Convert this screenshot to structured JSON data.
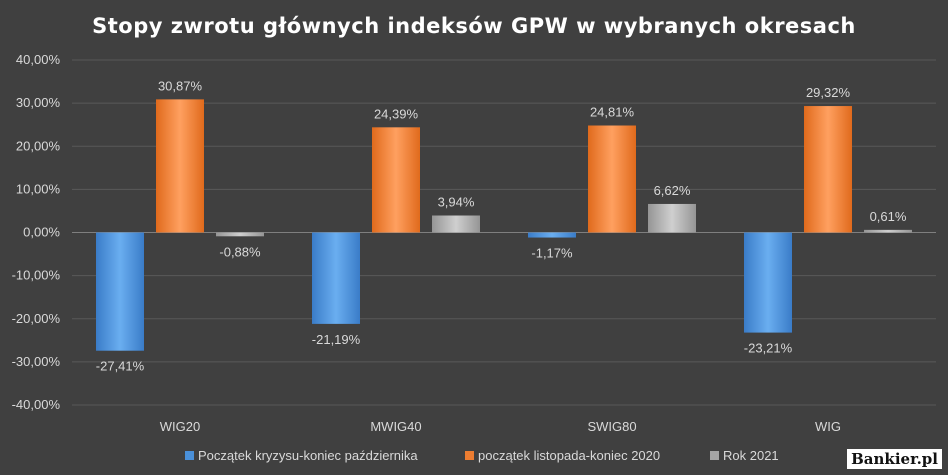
{
  "chart_data": {
    "type": "bar",
    "title": "Stopy zwrotu głównych indeksów GPW w wybranych okresach",
    "categories": [
      "WIG20",
      "MWIG40",
      "SWIG80",
      "WIG"
    ],
    "series": [
      {
        "name": "Początek kryzysu-koniec października",
        "color": "#4a90d9",
        "values": [
          -27.41,
          -21.19,
          -1.17,
          -23.21
        ],
        "labels": [
          "-27,41%",
          "-21,19%",
          "-1,17%",
          "-23,21%"
        ]
      },
      {
        "name": "początek listopada-koniec 2020",
        "color": "#ed7d31",
        "values": [
          30.87,
          24.39,
          24.81,
          29.32
        ],
        "labels": [
          "30,87%",
          "24,39%",
          "24,81%",
          "29,32%"
        ]
      },
      {
        "name": "Rok 2021",
        "color": "#a5a5a5",
        "values": [
          -0.88,
          3.94,
          6.62,
          0.61
        ],
        "labels": [
          "-0,88%",
          "3,94%",
          "6,62%",
          "0,61%"
        ]
      }
    ],
    "ylim": [
      -40,
      40
    ],
    "yticks": [
      "40,00%",
      "30,00%",
      "20,00%",
      "10,00%",
      "0,00%",
      "-10,00%",
      "-20,00%",
      "-30,00%",
      "-40,00%"
    ],
    "xlabel": "",
    "ylabel": "",
    "grid": true,
    "legend_position": "bottom"
  },
  "watermark": "Bankier.pl"
}
